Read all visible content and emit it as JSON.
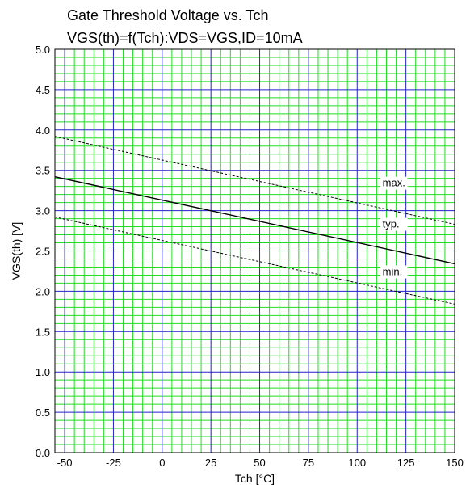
{
  "chart_data": {
    "type": "line",
    "title": "Gate Threshold Voltage vs. Tch",
    "subtitle": "VGS(th)=f(Tch):VDS=VGS,ID=10mA",
    "xlabel": "Tch [°C]",
    "ylabel": "VGS(th) [V]",
    "xlim": [
      -55,
      150
    ],
    "ylim": [
      0.0,
      5.0
    ],
    "x_ticks": [
      -50,
      -25,
      0,
      25,
      50,
      75,
      100,
      125,
      150
    ],
    "x_tick_labels": [
      "-50",
      "-25",
      "0",
      "25",
      "50",
      "75",
      "100",
      "125",
      "150"
    ],
    "y_ticks": [
      0.0,
      0.5,
      1.0,
      1.5,
      2.0,
      2.5,
      3.0,
      3.5,
      4.0,
      4.5,
      5.0
    ],
    "y_tick_labels": [
      "0.0",
      "0.5",
      "1.0",
      "1.5",
      "2.0",
      "2.5",
      "3.0",
      "3.5",
      "4.0",
      "4.5",
      "5.0"
    ],
    "grid": true,
    "series": [
      {
        "name": "max.",
        "style": "dashed",
        "x": [
          -55,
          150
        ],
        "y": [
          3.92,
          2.83
        ]
      },
      {
        "name": "typ.",
        "style": "solid",
        "x": [
          -55,
          150
        ],
        "y": [
          3.42,
          2.34
        ]
      },
      {
        "name": "min.",
        "style": "dashed",
        "x": [
          -55,
          150
        ],
        "y": [
          2.92,
          1.84
        ]
      }
    ],
    "annotations": [
      {
        "text": "max.",
        "x": 113,
        "y": 3.3
      },
      {
        "text": "typ.",
        "x": 113,
        "y": 2.79
      },
      {
        "text": "min.",
        "x": 113,
        "y": 2.2
      }
    ],
    "colors": {
      "major_grid": "#2222cc",
      "minor_grid": "#22dd22",
      "background": "#ffffff",
      "series": "#000000"
    }
  }
}
